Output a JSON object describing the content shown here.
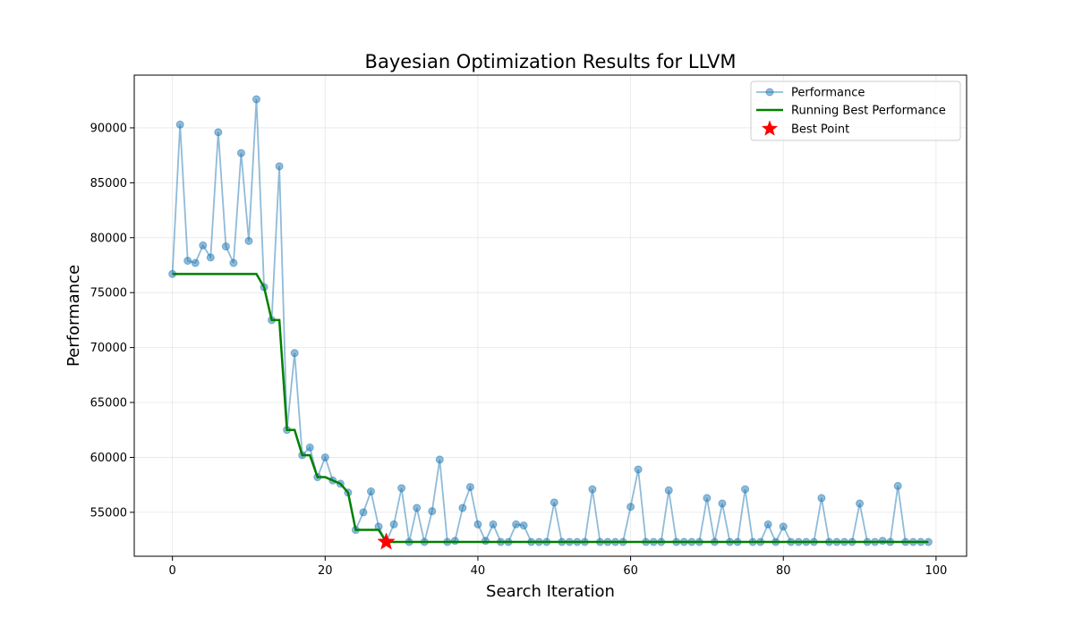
{
  "chart_data": {
    "type": "line",
    "title": "Bayesian Optimization Results for LLVM",
    "xlabel": "Search Iteration",
    "ylabel": "Performance",
    "xlim": [
      -5,
      104
    ],
    "ylim": [
      51000,
      94800
    ],
    "xticks": [
      0,
      20,
      40,
      60,
      80,
      100
    ],
    "yticks": [
      55000,
      60000,
      65000,
      70000,
      75000,
      80000,
      85000,
      90000
    ],
    "grid": true,
    "legend_position": "top-right",
    "colors": {
      "performance": "#1f77b4",
      "running_best": "#008000",
      "best_point": "#ff0000"
    },
    "series": [
      {
        "name": "Performance",
        "x": [
          0,
          1,
          2,
          3,
          4,
          5,
          6,
          7,
          8,
          9,
          10,
          11,
          12,
          13,
          14,
          15,
          16,
          17,
          18,
          19,
          20,
          21,
          22,
          23,
          24,
          25,
          26,
          27,
          28,
          29,
          30,
          31,
          32,
          33,
          34,
          35,
          36,
          37,
          38,
          39,
          40,
          41,
          42,
          43,
          44,
          45,
          46,
          47,
          48,
          49,
          50,
          51,
          52,
          53,
          54,
          55,
          56,
          57,
          58,
          59,
          60,
          61,
          62,
          63,
          64,
          65,
          66,
          67,
          68,
          69,
          70,
          71,
          72,
          73,
          74,
          75,
          76,
          77,
          78,
          79,
          80,
          81,
          82,
          83,
          84,
          85,
          86,
          87,
          88,
          89,
          90,
          91,
          92,
          93,
          94,
          95,
          96,
          97,
          98,
          99
        ],
        "values": [
          76700,
          90300,
          77900,
          77700,
          79300,
          78200,
          89600,
          79200,
          77700,
          87700,
          79700,
          92600,
          75500,
          72500,
          86500,
          62500,
          69500,
          60200,
          60900,
          58200,
          60000,
          57900,
          57600,
          56800,
          53400,
          55000,
          56900,
          53700,
          52300,
          53900,
          57200,
          52300,
          55400,
          52300,
          55100,
          59800,
          52300,
          52400,
          55400,
          57300,
          53900,
          52400,
          53900,
          52300,
          52300,
          53900,
          53800,
          52300,
          52300,
          52300,
          55900,
          52300,
          52300,
          52300,
          52300,
          57100,
          52300,
          52300,
          52300,
          52300,
          55500,
          58900,
          52300,
          52300,
          52300,
          57000,
          52300,
          52300,
          52300,
          52300,
          56300,
          52300,
          55800,
          52300,
          52300,
          57100,
          52300,
          52300,
          53900,
          52300,
          53700,
          52300,
          52300,
          52300,
          52300,
          56300,
          52300,
          52300,
          52300,
          52300,
          55800,
          52300,
          52300,
          52400,
          52300,
          57400,
          52300,
          52300,
          52300,
          52300
        ]
      },
      {
        "name": "Running Best Performance",
        "x": [
          0,
          1,
          2,
          3,
          4,
          5,
          6,
          7,
          8,
          9,
          10,
          11,
          12,
          13,
          14,
          15,
          16,
          17,
          18,
          19,
          20,
          21,
          22,
          23,
          24,
          25,
          26,
          27,
          28,
          29,
          30,
          31,
          32,
          33,
          34,
          35,
          36,
          37,
          38,
          39,
          40,
          41,
          42,
          43,
          44,
          45,
          46,
          47,
          48,
          49,
          50,
          51,
          52,
          53,
          54,
          55,
          56,
          57,
          58,
          59,
          60,
          61,
          62,
          63,
          64,
          65,
          66,
          67,
          68,
          69,
          70,
          71,
          72,
          73,
          74,
          75,
          76,
          77,
          78,
          79,
          80,
          81,
          82,
          83,
          84,
          85,
          86,
          87,
          88,
          89,
          90,
          91,
          92,
          93,
          94,
          95,
          96,
          97,
          98,
          99
        ],
        "values": [
          76700,
          76700,
          76700,
          76700,
          76700,
          76700,
          76700,
          76700,
          76700,
          76700,
          76700,
          76700,
          75500,
          72500,
          72500,
          62500,
          62500,
          60200,
          60200,
          58200,
          58200,
          57900,
          57600,
          56800,
          53400,
          53400,
          53400,
          53400,
          52300,
          52300,
          52300,
          52300,
          52300,
          52300,
          52300,
          52300,
          52300,
          52300,
          52300,
          52300,
          52300,
          52300,
          52300,
          52300,
          52300,
          52300,
          52300,
          52300,
          52300,
          52300,
          52300,
          52300,
          52300,
          52300,
          52300,
          52300,
          52300,
          52300,
          52300,
          52300,
          52300,
          52300,
          52300,
          52300,
          52300,
          52300,
          52300,
          52300,
          52300,
          52300,
          52300,
          52300,
          52300,
          52300,
          52300,
          52300,
          52300,
          52300,
          52300,
          52300,
          52300,
          52300,
          52300,
          52300,
          52300,
          52300,
          52300,
          52300,
          52300,
          52300,
          52300,
          52300,
          52300,
          52300,
          52300,
          52300,
          52300,
          52300,
          52300,
          52300
        ]
      },
      {
        "name": "Best Point",
        "x": [
          28
        ],
        "values": [
          52300
        ]
      }
    ]
  }
}
